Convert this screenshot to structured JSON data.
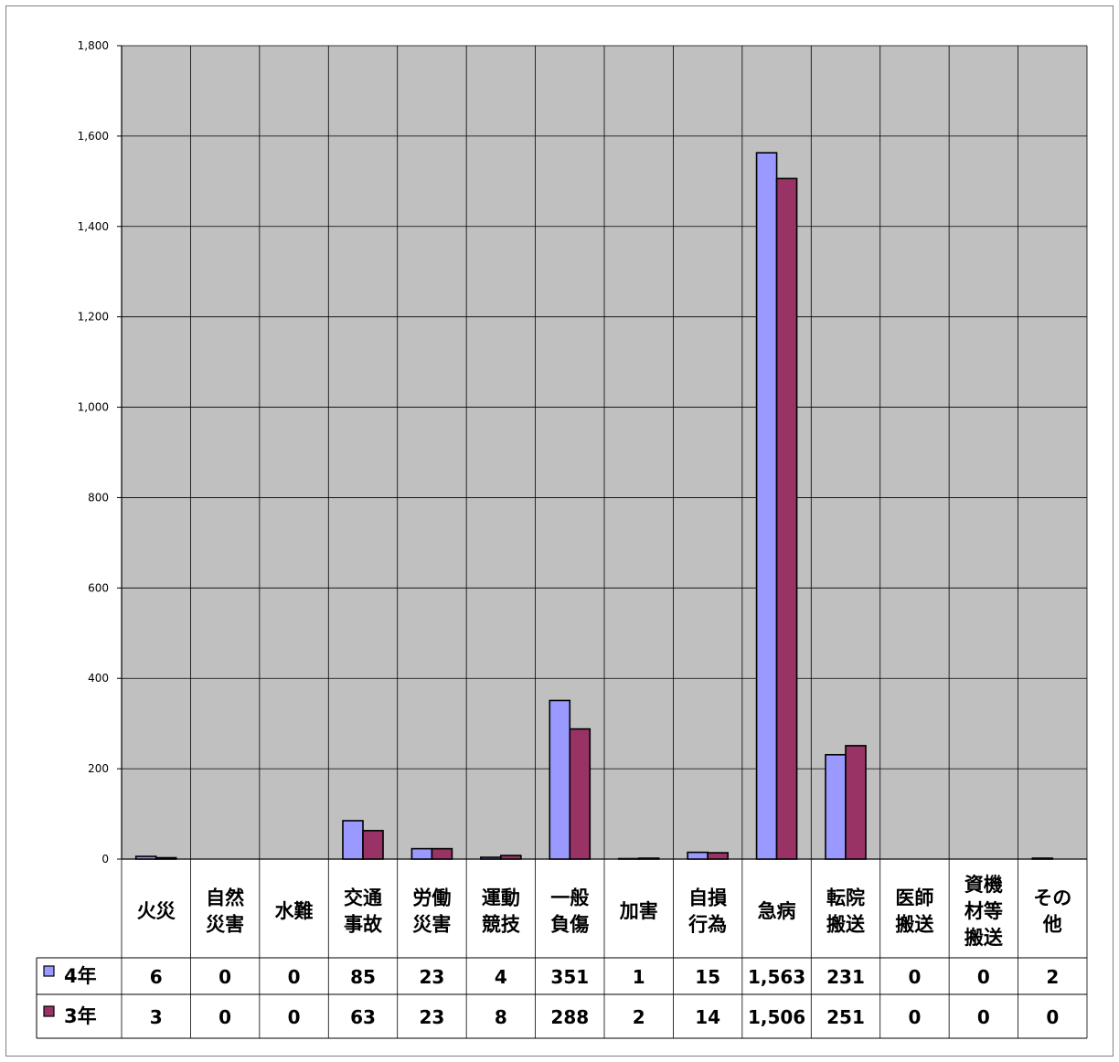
{
  "chart_data": {
    "type": "bar",
    "title": "",
    "xlabel": "",
    "ylabel": "",
    "ylim": [
      0,
      1800
    ],
    "yticks": [
      "0",
      "200",
      "400",
      "600",
      "800",
      "1,000",
      "1,200",
      "1,400",
      "1,600",
      "1,800"
    ],
    "ytick_values": [
      0,
      200,
      400,
      600,
      800,
      1000,
      1200,
      1400,
      1600,
      1800
    ],
    "grid": true,
    "legend": "bottom-left (data table)",
    "plot_background": "#c0c0c0",
    "categories": [
      [
        "火災"
      ],
      [
        "自然",
        "災害"
      ],
      [
        "水難"
      ],
      [
        "交通",
        "事故"
      ],
      [
        "労働",
        "災害"
      ],
      [
        "運動",
        "競技"
      ],
      [
        "一般",
        "負傷"
      ],
      [
        "加害"
      ],
      [
        "自損",
        "行為"
      ],
      [
        "急病"
      ],
      [
        "転院",
        "搬送"
      ],
      [
        "医師",
        "搬送"
      ],
      [
        "資機",
        "材等",
        "搬送"
      ],
      [
        "その",
        "他"
      ]
    ],
    "series": [
      {
        "name": "4年",
        "color": "#9999ff",
        "values": [
          6,
          0,
          0,
          85,
          23,
          4,
          351,
          1,
          15,
          1563,
          231,
          0,
          0,
          2
        ],
        "labels": [
          "6",
          "0",
          "0",
          "85",
          "23",
          "4",
          "351",
          "1",
          "15",
          "1,563",
          "231",
          "0",
          "0",
          "2"
        ]
      },
      {
        "name": "3年",
        "color": "#993366",
        "values": [
          3,
          0,
          0,
          63,
          23,
          8,
          288,
          2,
          14,
          1506,
          251,
          0,
          0,
          0
        ],
        "labels": [
          "3",
          "0",
          "0",
          "63",
          "23",
          "8",
          "288",
          "2",
          "14",
          "1,506",
          "251",
          "0",
          "0",
          "0"
        ]
      }
    ]
  }
}
